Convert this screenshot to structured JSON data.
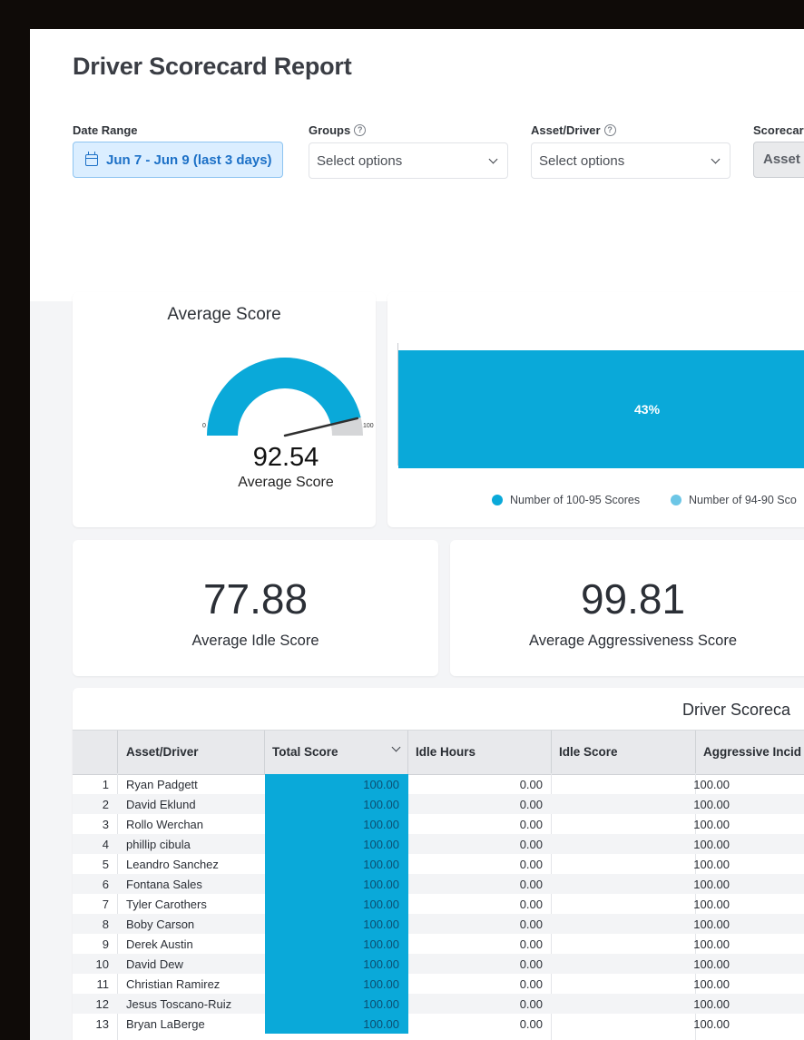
{
  "page": {
    "title": "Driver Scorecard Report"
  },
  "filters": {
    "date_range": {
      "label": "Date Range",
      "value": "Jun 7 - Jun 9 (last 3 days)"
    },
    "groups": {
      "label": "Groups",
      "placeholder": "Select options"
    },
    "asset_driver": {
      "label": "Asset/Driver",
      "placeholder": "Select options"
    },
    "scorecard": {
      "label": "Scorecar",
      "value": "Asset"
    }
  },
  "average_score_card": {
    "title": "Average Score",
    "gauge": {
      "min": "0",
      "max": "100",
      "value": "92.54",
      "label": "Average Score",
      "fraction": 0.9254
    }
  },
  "distribution_chart": {
    "bar_label": "43%",
    "legend": [
      {
        "label": "Number of 100-95 Scores",
        "color": "#0aa9d9"
      },
      {
        "label": "Number of 94-90 Sco",
        "color": "#6cc6e6"
      }
    ]
  },
  "chart_data": {
    "type": "bar",
    "categories": [
      "Number of 100-95 Scores"
    ],
    "values": [
      43
    ],
    "data_labels": [
      "43%"
    ]
  },
  "idle_card": {
    "value": "77.88",
    "label": "Average Idle Score"
  },
  "aggr_card": {
    "value": "99.81",
    "label": "Average Aggressiveness Score"
  },
  "table": {
    "title": "Driver Scoreca",
    "columns": [
      "Asset/Driver",
      "Total Score",
      "Idle Hours",
      "Idle Score",
      "Aggressive Incid"
    ],
    "rows": [
      {
        "n": "1",
        "name": "Ryan Padgett",
        "total": "100.00",
        "idle_hours": "0.00",
        "idle_score": "100.00"
      },
      {
        "n": "2",
        "name": "David Eklund",
        "total": "100.00",
        "idle_hours": "0.00",
        "idle_score": "100.00"
      },
      {
        "n": "3",
        "name": "Rollo Werchan",
        "total": "100.00",
        "idle_hours": "0.00",
        "idle_score": "100.00"
      },
      {
        "n": "4",
        "name": "phillip cibula",
        "total": "100.00",
        "idle_hours": "0.00",
        "idle_score": "100.00"
      },
      {
        "n": "5",
        "name": "Leandro Sanchez",
        "total": "100.00",
        "idle_hours": "0.00",
        "idle_score": "100.00"
      },
      {
        "n": "6",
        "name": "Fontana Sales",
        "total": "100.00",
        "idle_hours": "0.00",
        "idle_score": "100.00"
      },
      {
        "n": "7",
        "name": "Tyler Carothers",
        "total": "100.00",
        "idle_hours": "0.00",
        "idle_score": "100.00"
      },
      {
        "n": "8",
        "name": "Boby Carson",
        "total": "100.00",
        "idle_hours": "0.00",
        "idle_score": "100.00"
      },
      {
        "n": "9",
        "name": "Derek Austin",
        "total": "100.00",
        "idle_hours": "0.00",
        "idle_score": "100.00"
      },
      {
        "n": "10",
        "name": "David Dew",
        "total": "100.00",
        "idle_hours": "0.00",
        "idle_score": "100.00"
      },
      {
        "n": "11",
        "name": "Christian Ramirez",
        "total": "100.00",
        "idle_hours": "0.00",
        "idle_score": "100.00"
      },
      {
        "n": "12",
        "name": "Jesus Toscano-Ruiz",
        "total": "100.00",
        "idle_hours": "0.00",
        "idle_score": "100.00"
      },
      {
        "n": "13",
        "name": "Bryan LaBerge",
        "total": "100.00",
        "idle_hours": "0.00",
        "idle_score": "100.00"
      }
    ]
  },
  "colors": {
    "accent": "#0aa9d9",
    "accent_light": "#6cc6e6",
    "link": "#1d71c7"
  }
}
